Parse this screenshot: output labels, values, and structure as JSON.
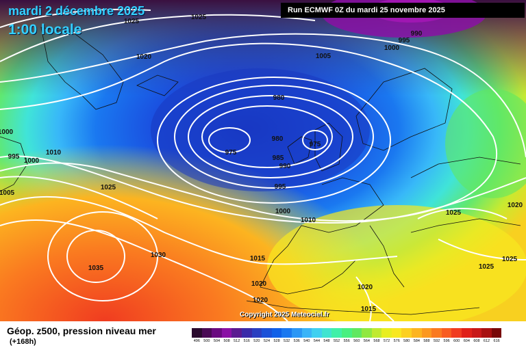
{
  "header": {
    "date": "mardi 2 décembre 2025",
    "time": "1:00 locale",
    "run": "Run ECMWF 0Z du mardi 25 novembre 2025"
  },
  "footer": {
    "title": "Géop. z500, pression niveau mer",
    "lead": "(+168h)",
    "copyright": "Copyright 2025 Meteociel.fr"
  },
  "isobar_labels": [
    "1025",
    "1025",
    "1020",
    "990",
    "995",
    "1000",
    "1005",
    "980",
    "980",
    "975",
    "975",
    "985",
    "990",
    "995",
    "1000",
    "995",
    "1000",
    "1010",
    "1005",
    "1025",
    "1000",
    "1010",
    "1020",
    "1025",
    "1015",
    "1020",
    "1020",
    "1015",
    "1030",
    "1035",
    "1025",
    "1025",
    "1020"
  ],
  "legend": {
    "ticks": [
      "496",
      "500",
      "504",
      "508",
      "512",
      "516",
      "520",
      "524",
      "528",
      "532",
      "536",
      "540",
      "544",
      "548",
      "552",
      "556",
      "560",
      "564",
      "568",
      "572",
      "576",
      "580",
      "584",
      "588",
      "592",
      "596",
      "600",
      "604",
      "608",
      "612",
      "616"
    ],
    "colors": [
      "#2a0a2e",
      "#4a0a55",
      "#6a0a80",
      "#8a10a5",
      "#5a1a90",
      "#3a2aa8",
      "#2a3ec0",
      "#1a50d8",
      "#1060e8",
      "#1a78f0",
      "#2a96f5",
      "#3ab4f8",
      "#40d0f0",
      "#40e4d0",
      "#40f0a8",
      "#48f080",
      "#60e860",
      "#90e840",
      "#c0ea30",
      "#e8ee20",
      "#f8e820",
      "#fcd020",
      "#fcb420",
      "#fc9820",
      "#fa7a20",
      "#f85c20",
      "#f03c20",
      "#e02018",
      "#c81818",
      "#a81010",
      "#780808"
    ]
  }
}
